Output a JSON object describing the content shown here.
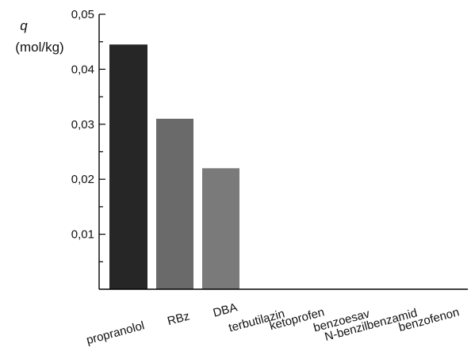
{
  "chart_data": {
    "type": "bar",
    "ylabel": "q",
    "yunit": "(mol/kg)",
    "categories": [
      "propranolol",
      "RBz",
      "DBA",
      "terbutilazin",
      "ketoprofen",
      "benzoesav",
      "N-benzilbenzamid",
      "benzofenon"
    ],
    "values": [
      0.0445,
      0.031,
      0.022,
      0,
      0,
      0,
      0,
      0
    ],
    "ylim": [
      0,
      0.05
    ],
    "yticks": [
      "0,01",
      "0,02",
      "0,03",
      "0,04",
      "0,05"
    ],
    "ytick_values": [
      0.01,
      0.02,
      0.03,
      0.04,
      0.05
    ],
    "grid": false,
    "bar_colors": [
      "#262626",
      "#6a6a6a",
      "#7a7a7a",
      "#888888",
      "#888888",
      "#888888",
      "#888888",
      "#888888"
    ]
  }
}
